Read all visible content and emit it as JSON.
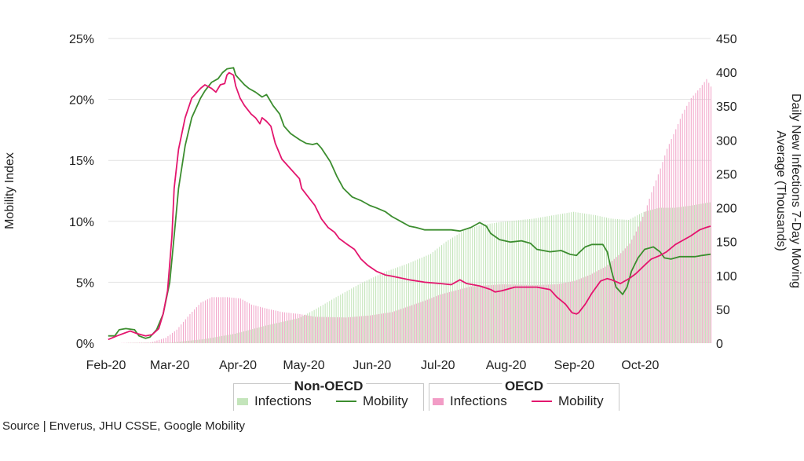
{
  "chart_data": {
    "type": "bar+line",
    "title": "",
    "xlabel": "",
    "ylabel": "Mobility Index",
    "y2label": "Daily New Infections 7-Day Moving Average (Thousands)",
    "y2label_lines": [
      "Daily New Infections 7-Day Moving",
      "Average (Thousands)"
    ],
    "ylim": [
      0,
      25
    ],
    "y2lim": [
      0,
      450
    ],
    "yticks": [
      "0%",
      "5%",
      "10%",
      "15%",
      "20%",
      "25%"
    ],
    "y2ticks": [
      "0",
      "50",
      "100",
      "150",
      "200",
      "250",
      "300",
      "350",
      "400",
      "450"
    ],
    "x_unit": "days since 2020-02-01",
    "xlim": [
      0,
      275
    ],
    "xticks": [
      {
        "day": 0,
        "label": "Feb-20"
      },
      {
        "day": 29,
        "label": "Mar-20"
      },
      {
        "day": 60,
        "label": "Apr-20"
      },
      {
        "day": 90,
        "label": "May-20"
      },
      {
        "day": 121,
        "label": "Jun-20"
      },
      {
        "day": 151,
        "label": "Jul-20"
      },
      {
        "day": 182,
        "label": "Aug-20"
      },
      {
        "day": 213,
        "label": "Sep-20"
      },
      {
        "day": 243,
        "label": "Oct-20"
      }
    ],
    "grid": true,
    "series": [
      {
        "name": "Non-OECD Infections",
        "type": "bar",
        "axis": "right",
        "color": "#c4e5bb",
        "points": [
          [
            1,
            0
          ],
          [
            30,
            1
          ],
          [
            45,
            6
          ],
          [
            59,
            14
          ],
          [
            73,
            26
          ],
          [
            88,
            37
          ],
          [
            95,
            49
          ],
          [
            105,
            68
          ],
          [
            116,
            88
          ],
          [
            127,
            105
          ],
          [
            138,
            118
          ],
          [
            148,
            132
          ],
          [
            155,
            150
          ],
          [
            163,
            166
          ],
          [
            170,
            174
          ],
          [
            180,
            179
          ],
          [
            195,
            184
          ],
          [
            202,
            188
          ],
          [
            213,
            194
          ],
          [
            223,
            189
          ],
          [
            230,
            184
          ],
          [
            238,
            182
          ],
          [
            245,
            194
          ],
          [
            252,
            200
          ],
          [
            259,
            200
          ],
          [
            266,
            203
          ],
          [
            275,
            208
          ]
        ]
      },
      {
        "name": "Non-OECD Mobility",
        "type": "line",
        "axis": "left",
        "color": "#3c8d2f",
        "points": [
          [
            1,
            0.6
          ],
          [
            4,
            0.6
          ],
          [
            6,
            1.1
          ],
          [
            9,
            1.2
          ],
          [
            13,
            1.1
          ],
          [
            15,
            0.6
          ],
          [
            18,
            0.4
          ],
          [
            20,
            0.5
          ],
          [
            23,
            1.1
          ],
          [
            26,
            2.4
          ],
          [
            29,
            5.0
          ],
          [
            31,
            8.8
          ],
          [
            33,
            12.7
          ],
          [
            36,
            16.2
          ],
          [
            39,
            18.5
          ],
          [
            43,
            20.1
          ],
          [
            45,
            20.7
          ],
          [
            48,
            21.4
          ],
          [
            51,
            21.7
          ],
          [
            53,
            22.2
          ],
          [
            55,
            22.5
          ],
          [
            58,
            22.6
          ],
          [
            59,
            22.0
          ],
          [
            61,
            21.6
          ],
          [
            63,
            21.2
          ],
          [
            65,
            20.9
          ],
          [
            68,
            20.6
          ],
          [
            71,
            20.2
          ],
          [
            73,
            20.4
          ],
          [
            74,
            20.1
          ],
          [
            76,
            19.5
          ],
          [
            79,
            18.8
          ],
          [
            81,
            17.8
          ],
          [
            84,
            17.2
          ],
          [
            88,
            16.7
          ],
          [
            91,
            16.4
          ],
          [
            94,
            16.3
          ],
          [
            96,
            16.4
          ],
          [
            98,
            16.0
          ],
          [
            102,
            14.9
          ],
          [
            105,
            13.7
          ],
          [
            108,
            12.7
          ],
          [
            112,
            12.0
          ],
          [
            116,
            11.7
          ],
          [
            120,
            11.3
          ],
          [
            123,
            11.1
          ],
          [
            127,
            10.8
          ],
          [
            130,
            10.4
          ],
          [
            134,
            10.0
          ],
          [
            138,
            9.6
          ],
          [
            141,
            9.5
          ],
          [
            145,
            9.3
          ],
          [
            152,
            9.3
          ],
          [
            157,
            9.3
          ],
          [
            161,
            9.2
          ],
          [
            166,
            9.5
          ],
          [
            170,
            9.9
          ],
          [
            173,
            9.6
          ],
          [
            175,
            9.0
          ],
          [
            179,
            8.5
          ],
          [
            184,
            8.3
          ],
          [
            189,
            8.4
          ],
          [
            193,
            8.2
          ],
          [
            196,
            7.7
          ],
          [
            202,
            7.5
          ],
          [
            207,
            7.6
          ],
          [
            211,
            7.3
          ],
          [
            214,
            7.2
          ],
          [
            215,
            7.4
          ],
          [
            218,
            7.9
          ],
          [
            221,
            8.1
          ],
          [
            226,
            8.1
          ],
          [
            228,
            7.5
          ],
          [
            230,
            5.9
          ],
          [
            232,
            4.6
          ],
          [
            235,
            4.0
          ],
          [
            237,
            4.6
          ],
          [
            239,
            5.9
          ],
          [
            242,
            7.0
          ],
          [
            245,
            7.7
          ],
          [
            249,
            7.9
          ],
          [
            252,
            7.5
          ],
          [
            254,
            7.0
          ],
          [
            257,
            6.9
          ],
          [
            261,
            7.1
          ],
          [
            264,
            7.1
          ],
          [
            268,
            7.1
          ],
          [
            271,
            7.2
          ],
          [
            275,
            7.3
          ]
        ]
      },
      {
        "name": "OECD Infections",
        "type": "bar",
        "axis": "right",
        "color": "#f2a8cb",
        "points": [
          [
            1,
            0
          ],
          [
            20,
            1
          ],
          [
            27,
            8
          ],
          [
            32,
            20
          ],
          [
            38,
            43
          ],
          [
            43,
            60
          ],
          [
            48,
            68
          ],
          [
            55,
            68
          ],
          [
            61,
            66
          ],
          [
            66,
            57
          ],
          [
            73,
            51
          ],
          [
            80,
            46
          ],
          [
            88,
            43
          ],
          [
            95,
            39
          ],
          [
            109,
            38
          ],
          [
            120,
            41
          ],
          [
            130,
            46
          ],
          [
            138,
            55
          ],
          [
            145,
            63
          ],
          [
            152,
            72
          ],
          [
            159,
            78
          ],
          [
            166,
            84
          ],
          [
            180,
            87
          ],
          [
            195,
            86
          ],
          [
            205,
            87
          ],
          [
            213,
            92
          ],
          [
            220,
            101
          ],
          [
            227,
            113
          ],
          [
            234,
            133
          ],
          [
            238,
            147
          ],
          [
            241,
            165
          ],
          [
            245,
            194
          ],
          [
            248,
            223
          ],
          [
            252,
            258
          ],
          [
            255,
            287
          ],
          [
            259,
            316
          ],
          [
            262,
            339
          ],
          [
            266,
            362
          ],
          [
            270,
            377
          ],
          [
            273,
            390
          ],
          [
            275,
            379
          ]
        ]
      },
      {
        "name": "OECD Mobility",
        "type": "line",
        "axis": "left",
        "color": "#e3166e",
        "points": [
          [
            1,
            0.3
          ],
          [
            5,
            0.6
          ],
          [
            11,
            1.0
          ],
          [
            14,
            0.8
          ],
          [
            18,
            0.6
          ],
          [
            21,
            0.7
          ],
          [
            24,
            1.2
          ],
          [
            26,
            2.4
          ],
          [
            28,
            4.3
          ],
          [
            30,
            8.8
          ],
          [
            31,
            12.7
          ],
          [
            33,
            15.9
          ],
          [
            36,
            18.5
          ],
          [
            39,
            20.1
          ],
          [
            43,
            20.9
          ],
          [
            45,
            21.2
          ],
          [
            48,
            20.9
          ],
          [
            50,
            20.6
          ],
          [
            52,
            21.2
          ],
          [
            54,
            21.3
          ],
          [
            55,
            22.0
          ],
          [
            56,
            22.2
          ],
          [
            58,
            22.0
          ],
          [
            59,
            21.1
          ],
          [
            61,
            20.1
          ],
          [
            63,
            19.5
          ],
          [
            66,
            18.8
          ],
          [
            68,
            18.5
          ],
          [
            70,
            18.0
          ],
          [
            71,
            18.5
          ],
          [
            73,
            18.2
          ],
          [
            75,
            17.8
          ],
          [
            77,
            16.4
          ],
          [
            80,
            15.1
          ],
          [
            84,
            14.3
          ],
          [
            88,
            13.5
          ],
          [
            89,
            12.7
          ],
          [
            92,
            12.0
          ],
          [
            95,
            11.3
          ],
          [
            98,
            10.2
          ],
          [
            101,
            9.5
          ],
          [
            104,
            9.1
          ],
          [
            106,
            8.6
          ],
          [
            109,
            8.2
          ],
          [
            113,
            7.7
          ],
          [
            116,
            6.9
          ],
          [
            119,
            6.4
          ],
          [
            123,
            5.9
          ],
          [
            127,
            5.6
          ],
          [
            130,
            5.5
          ],
          [
            138,
            5.2
          ],
          [
            145,
            5.0
          ],
          [
            152,
            4.9
          ],
          [
            157,
            4.8
          ],
          [
            161,
            5.2
          ],
          [
            164,
            4.9
          ],
          [
            170,
            4.7
          ],
          [
            175,
            4.4
          ],
          [
            177,
            4.2
          ],
          [
            180,
            4.3
          ],
          [
            186,
            4.6
          ],
          [
            191,
            4.6
          ],
          [
            196,
            4.6
          ],
          [
            202,
            4.4
          ],
          [
            205,
            3.8
          ],
          [
            209,
            3.2
          ],
          [
            212,
            2.5
          ],
          [
            214,
            2.4
          ],
          [
            215,
            2.5
          ],
          [
            218,
            3.2
          ],
          [
            221,
            4.1
          ],
          [
            225,
            5.1
          ],
          [
            228,
            5.3
          ],
          [
            230,
            5.2
          ],
          [
            234,
            4.9
          ],
          [
            238,
            5.3
          ],
          [
            241,
            5.7
          ],
          [
            245,
            6.4
          ],
          [
            248,
            6.9
          ],
          [
            252,
            7.2
          ],
          [
            255,
            7.5
          ],
          [
            259,
            8.1
          ],
          [
            262,
            8.4
          ],
          [
            266,
            8.8
          ],
          [
            270,
            9.3
          ],
          [
            273,
            9.5
          ],
          [
            275,
            9.6
          ]
        ]
      }
    ]
  },
  "legend": {
    "groups": [
      {
        "title": "Non-OECD",
        "infections": "Infections",
        "mobility": "Mobility"
      },
      {
        "title": "OECD",
        "infections": "Infections",
        "mobility": "Mobility"
      }
    ]
  },
  "source": "Source | Enverus, JHU CSSE, Google Mobility"
}
